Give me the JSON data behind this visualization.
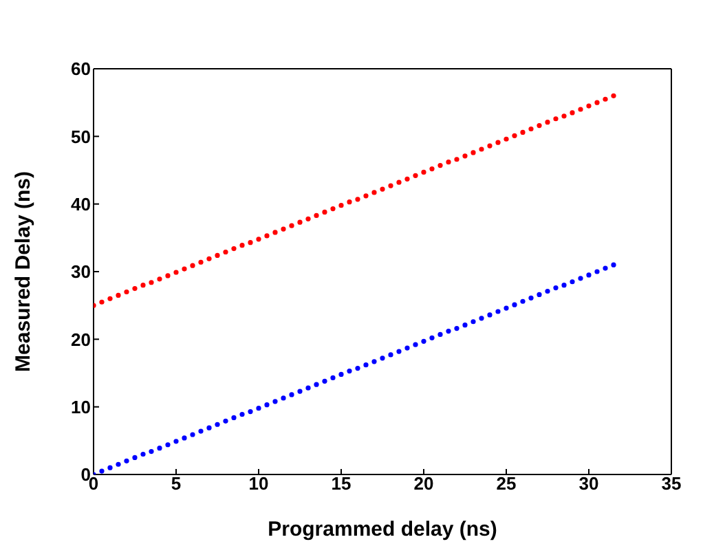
{
  "chart_data": {
    "type": "scatter",
    "xlabel": "Programmed delay (ns)",
    "ylabel": "Measured Delay (ns)",
    "x": [
      0,
      0.5,
      1,
      1.5,
      2,
      2.5,
      3,
      3.5,
      4,
      4.5,
      5,
      5.5,
      6,
      6.5,
      7,
      7.5,
      8,
      8.5,
      9,
      9.5,
      10,
      10.5,
      11,
      11.5,
      12,
      12.5,
      13,
      13.5,
      14,
      14.5,
      15,
      15.5,
      16,
      16.5,
      17,
      17.5,
      18,
      18.5,
      19,
      19.5,
      20,
      20.5,
      21,
      21.5,
      22,
      22.5,
      23,
      23.5,
      24,
      24.5,
      25,
      25.5,
      26,
      26.5,
      27,
      27.5,
      28,
      28.5,
      29,
      29.5,
      30,
      30.5,
      31,
      31.5
    ],
    "series": [
      {
        "color": "#ff0000",
        "values": [
          25.0,
          25.5,
          26.0,
          26.5,
          27.0,
          27.5,
          28.0,
          28.4,
          28.9,
          29.4,
          29.9,
          30.4,
          30.9,
          31.4,
          31.9,
          32.4,
          32.9,
          33.4,
          33.9,
          34.3,
          34.8,
          35.3,
          35.8,
          36.3,
          36.8,
          37.3,
          37.8,
          38.3,
          38.8,
          39.3,
          39.8,
          40.3,
          40.7,
          41.2,
          41.7,
          42.2,
          42.7,
          43.2,
          43.7,
          44.2,
          44.7,
          45.2,
          45.7,
          46.2,
          46.6,
          47.1,
          47.6,
          48.1,
          48.6,
          49.1,
          49.6,
          50.1,
          50.6,
          51.1,
          51.6,
          52.1,
          52.6,
          53.0,
          53.5,
          54.0,
          54.5,
          55.0,
          55.5,
          56.0
        ]
      },
      {
        "color": "#0000ff",
        "values": [
          0.0,
          0.5,
          1.0,
          1.5,
          2.0,
          2.5,
          3.0,
          3.4,
          3.9,
          4.4,
          4.9,
          5.4,
          5.9,
          6.4,
          6.9,
          7.4,
          7.9,
          8.4,
          8.9,
          9.3,
          9.8,
          10.3,
          10.8,
          11.3,
          11.8,
          12.3,
          12.8,
          13.3,
          13.8,
          14.3,
          14.8,
          15.3,
          15.7,
          16.2,
          16.7,
          17.2,
          17.7,
          18.2,
          18.7,
          19.2,
          19.7,
          20.2,
          20.7,
          21.2,
          21.6,
          22.1,
          22.6,
          23.1,
          23.6,
          24.1,
          24.6,
          25.1,
          25.6,
          26.1,
          26.6,
          27.1,
          27.6,
          28.0,
          28.5,
          29.0,
          29.5,
          30.0,
          30.5,
          31.0
        ]
      }
    ],
    "xlim": [
      0,
      35
    ],
    "xticks": [
      0,
      5,
      10,
      15,
      20,
      25,
      30,
      35
    ],
    "ylim": [
      0,
      60
    ],
    "yticks": [
      0,
      10,
      20,
      30,
      40,
      50,
      60
    ],
    "marker": "circle"
  }
}
